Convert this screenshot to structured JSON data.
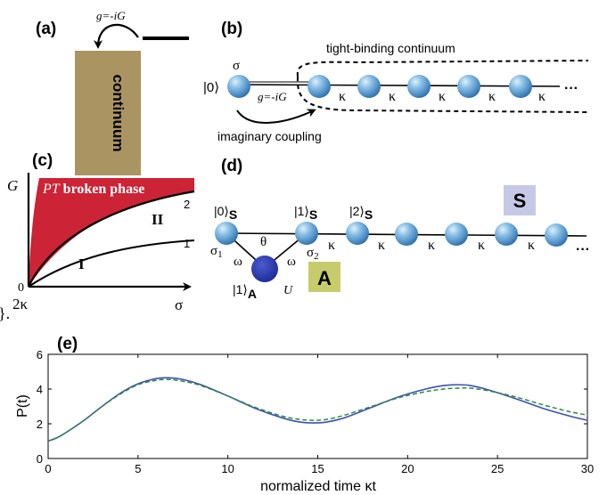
{
  "panels": {
    "a": {
      "label": "(a)",
      "coupling": "g=-iG",
      "box_text": "continuum"
    },
    "b": {
      "label": "(b)",
      "state0": "|0⟩",
      "sigma": "σ",
      "coupling": "g=-iG",
      "continuum": "tight-binding continuum",
      "imag": "imaginary coupling",
      "kappa": "κ",
      "dots": "···"
    },
    "c": {
      "label": "(c)",
      "ylabel": "G",
      "xlabel": "σ",
      "origin_y": "0",
      "origin_x": "2κ",
      "phase_pt": "PT",
      "phase_rest": " broken phase",
      "region2": "II",
      "region1": "I",
      "curve2": "2",
      "curve1": "1"
    },
    "d": {
      "label": "(d)",
      "ket0": "|0⟩",
      "ket1": "|1⟩",
      "ket2": "|2⟩",
      "subS": "S",
      "S_box": "S",
      "A_box": "A",
      "ketA": "|1⟩",
      "subA": "A",
      "sigma1": "σ",
      "sigma1_sub": "1",
      "sigma2": "σ",
      "sigma2_sub": "2",
      "omega": "ω",
      "theta": "θ",
      "U": "U",
      "kappa": "κ",
      "dots": "···"
    },
    "e": {
      "label": "(e)",
      "ylabel": "P(t)",
      "xlabel": "normalized time κt"
    }
  },
  "stray_text": "}.",
  "colors": {
    "box_fill": "#aa9462",
    "broken_phase": "#cc2336",
    "S_box": "#c6c9e6",
    "A_box": "#c6cc6b",
    "solid_line": "#3a51b8",
    "dashed_line": "#2e8a3a",
    "atom_dark": "#2233a3"
  },
  "chart_data": {
    "type": "line",
    "xlabel": "normalized time κt",
    "ylabel": "P(t)",
    "xlim": [
      0,
      30
    ],
    "ylim": [
      0,
      6
    ],
    "xticks": [
      0,
      5,
      10,
      15,
      20,
      25,
      30
    ],
    "yticks": [
      0,
      2,
      4,
      6
    ],
    "grid": false,
    "x": [
      0,
      0.5,
      1,
      2,
      3,
      4,
      5,
      6,
      6.7,
      7.5,
      8.5,
      10,
      11.5,
      13,
      14,
      14.8,
      15.5,
      16.5,
      18,
      19.5,
      21,
      22,
      22.8,
      23.5,
      24.5,
      26,
      27.5,
      29,
      30
    ],
    "series": [
      {
        "style": "solid",
        "values": [
          1.0,
          1.2,
          1.5,
          2.2,
          3.0,
          3.75,
          4.3,
          4.6,
          4.65,
          4.55,
          4.25,
          3.6,
          2.9,
          2.35,
          2.1,
          2.05,
          2.1,
          2.35,
          2.95,
          3.55,
          4.0,
          4.2,
          4.25,
          4.2,
          3.95,
          3.45,
          2.9,
          2.45,
          2.2
        ]
      },
      {
        "style": "dashed",
        "values": [
          1.0,
          1.2,
          1.5,
          2.2,
          3.0,
          3.7,
          4.25,
          4.5,
          4.55,
          4.45,
          4.2,
          3.6,
          2.95,
          2.45,
          2.25,
          2.2,
          2.25,
          2.5,
          3.0,
          3.5,
          3.85,
          4.0,
          4.05,
          4.05,
          3.9,
          3.55,
          3.1,
          2.7,
          2.5
        ]
      }
    ]
  }
}
